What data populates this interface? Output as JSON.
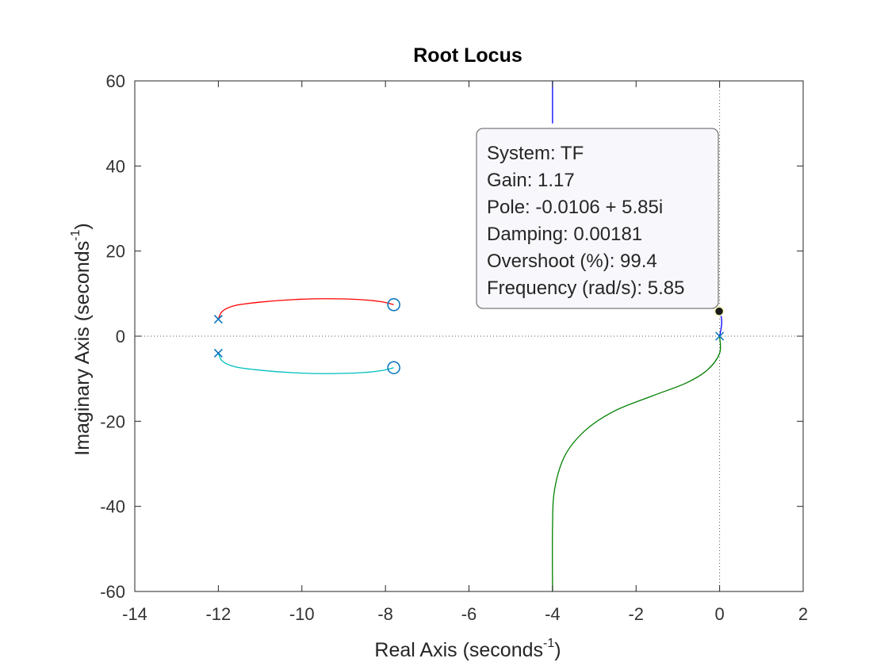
{
  "chart_data": {
    "type": "line",
    "title": "Root Locus",
    "xlabel": "Real Axis (seconds",
    "xlabel_exponent": "-1",
    "xlabel_suffix": ")",
    "ylabel": "Imaginary Axis (seconds",
    "ylabel_exponent": "-1",
    "ylabel_suffix": ")",
    "xlim": [
      -14,
      2
    ],
    "ylim": [
      -60,
      60
    ],
    "xticks": [
      -14,
      -12,
      -10,
      -8,
      -6,
      -4,
      -2,
      0,
      2
    ],
    "yticks": [
      -60,
      -40,
      -20,
      0,
      20,
      40,
      60
    ],
    "grid": false,
    "series": [
      {
        "color": "#ff0000",
        "points": [
          [
            -12.0,
            4.0
          ],
          [
            -11.9,
            5.9
          ],
          [
            -11.6,
            7.2
          ],
          [
            -11.0,
            8.0
          ],
          [
            -10.2,
            8.6
          ],
          [
            -9.4,
            8.8
          ],
          [
            -8.6,
            8.6
          ],
          [
            -8.1,
            8.1
          ],
          [
            -7.8,
            7.4
          ]
        ]
      },
      {
        "color": "#00bfbf",
        "points": [
          [
            -12.0,
            -4.0
          ],
          [
            -11.9,
            -5.9
          ],
          [
            -11.6,
            -7.2
          ],
          [
            -11.0,
            -8.0
          ],
          [
            -10.2,
            -8.6
          ],
          [
            -9.4,
            -8.8
          ],
          [
            -8.6,
            -8.6
          ],
          [
            -8.1,
            -8.1
          ],
          [
            -7.8,
            -7.4
          ]
        ]
      },
      {
        "color": "#0000ff",
        "points": [
          [
            -4.0,
            60
          ],
          [
            -4.0,
            50
          ]
        ]
      },
      {
        "color": "#0000ff",
        "points": [
          [
            0.0,
            0.0
          ],
          [
            0.03,
            1.5
          ],
          [
            0.05,
            3.0
          ],
          [
            0.04,
            4.5
          ],
          [
            -0.01,
            5.85
          ]
        ]
      },
      {
        "color": "#008000",
        "points": [
          [
            0.0,
            0.0
          ],
          [
            0.0,
            -4.0
          ],
          [
            -0.3,
            -8.0
          ],
          [
            -0.8,
            -11.0
          ],
          [
            -1.6,
            -14.0
          ],
          [
            -2.5,
            -17.5
          ],
          [
            -3.2,
            -22.0
          ],
          [
            -3.7,
            -28.0
          ],
          [
            -3.95,
            -36.0
          ],
          [
            -4.0,
            -45.0
          ],
          [
            -4.0,
            -60.0
          ]
        ]
      }
    ],
    "poles": [
      [
        -12.0,
        4.0
      ],
      [
        -12.0,
        -4.0
      ],
      [
        0.0,
        0.0
      ]
    ],
    "zeros": [
      [
        -7.8,
        7.4
      ],
      [
        -7.8,
        -7.4
      ]
    ],
    "marker_color": "#0072bd",
    "datatip": {
      "point": [
        -0.0106,
        5.85
      ],
      "lines": [
        "System: TF",
        "Gain: 1.17",
        "Pole: -0.0106 + 5.85i",
        "Damping: 0.00181",
        "Overshoot (%): 99.4",
        "Frequency (rad/s): 5.85"
      ]
    }
  }
}
